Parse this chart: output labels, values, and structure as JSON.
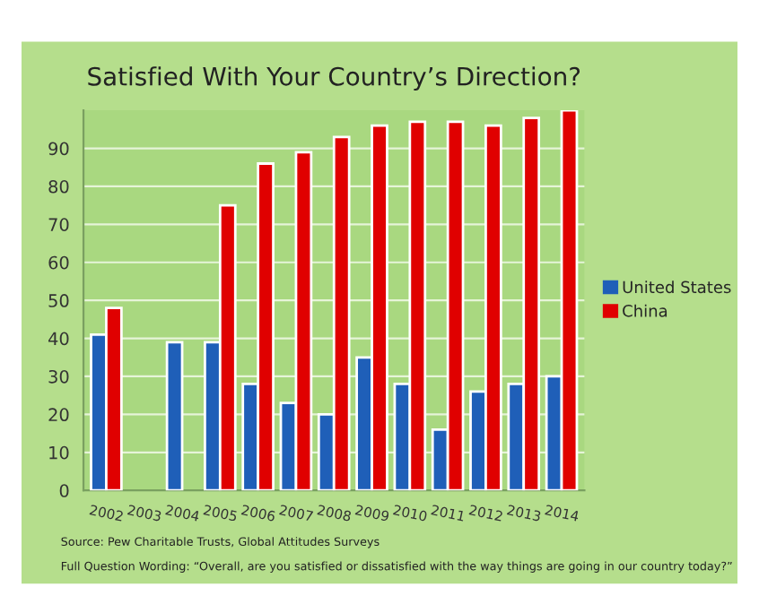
{
  "chart_data": {
    "type": "bar",
    "title": "Satisfied With Your Country’s Direction?",
    "categories": [
      "2002",
      "2003",
      "2004",
      "2005",
      "2006",
      "2007",
      "2008",
      "2009",
      "2010",
      "2011",
      "2012",
      "2013",
      "2014"
    ],
    "series": [
      {
        "name": "United States",
        "color": "#1f5fb8",
        "values": [
          41,
          null,
          39,
          39,
          28,
          23,
          20,
          35,
          28,
          16,
          26,
          28,
          30
        ]
      },
      {
        "name": "China",
        "color": "#e00000",
        "values": [
          48,
          null,
          null,
          75,
          86,
          89,
          93,
          96,
          97,
          97,
          96,
          98,
          100
        ]
      }
    ],
    "ylim": [
      0,
      100
    ],
    "yticks": [
      0,
      10,
      20,
      30,
      40,
      50,
      60,
      70,
      80,
      90
    ],
    "grid": "y",
    "legend": "right",
    "annotations": [
      "Source: Pew Charitable Trusts, Global Attitudes Surveys",
      "Full Question Wording: “Overall, are you satisfied or dissatisfied with the way things are going in our country today?”"
    ]
  }
}
